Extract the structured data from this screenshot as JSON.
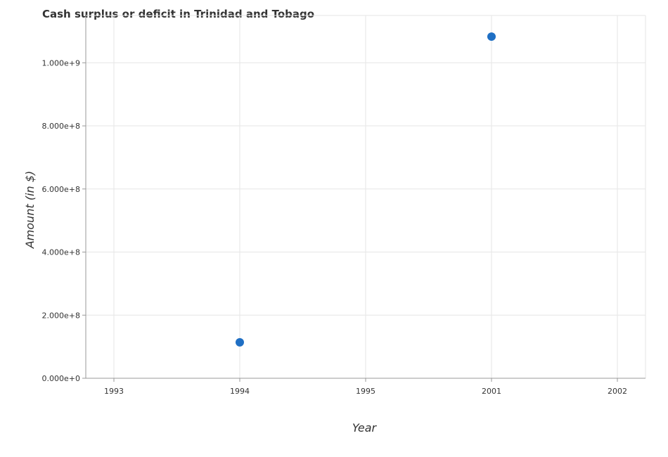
{
  "chart_data": {
    "type": "scatter",
    "title": "Cash surplus or deficit in Trinidad and Tobago",
    "xlabel": "Year",
    "ylabel": "Amount (in $)",
    "categories": [
      "1993",
      "1994",
      "1995",
      "2001",
      "2002"
    ],
    "series": [
      {
        "values": [
          null,
          114000000,
          null,
          1083000000,
          null
        ],
        "color": "#1f6fc4"
      }
    ],
    "ylim": [
      0,
      1150000000
    ],
    "yticks": [
      0,
      200000000,
      400000000,
      600000000,
      800000000,
      1000000000
    ],
    "ytick_labels": [
      "0.000e+0",
      "2.000e+8",
      "4.000e+8",
      "6.000e+8",
      "8.000e+8",
      "1.000e+9"
    ],
    "grid": true,
    "legend": "none"
  }
}
